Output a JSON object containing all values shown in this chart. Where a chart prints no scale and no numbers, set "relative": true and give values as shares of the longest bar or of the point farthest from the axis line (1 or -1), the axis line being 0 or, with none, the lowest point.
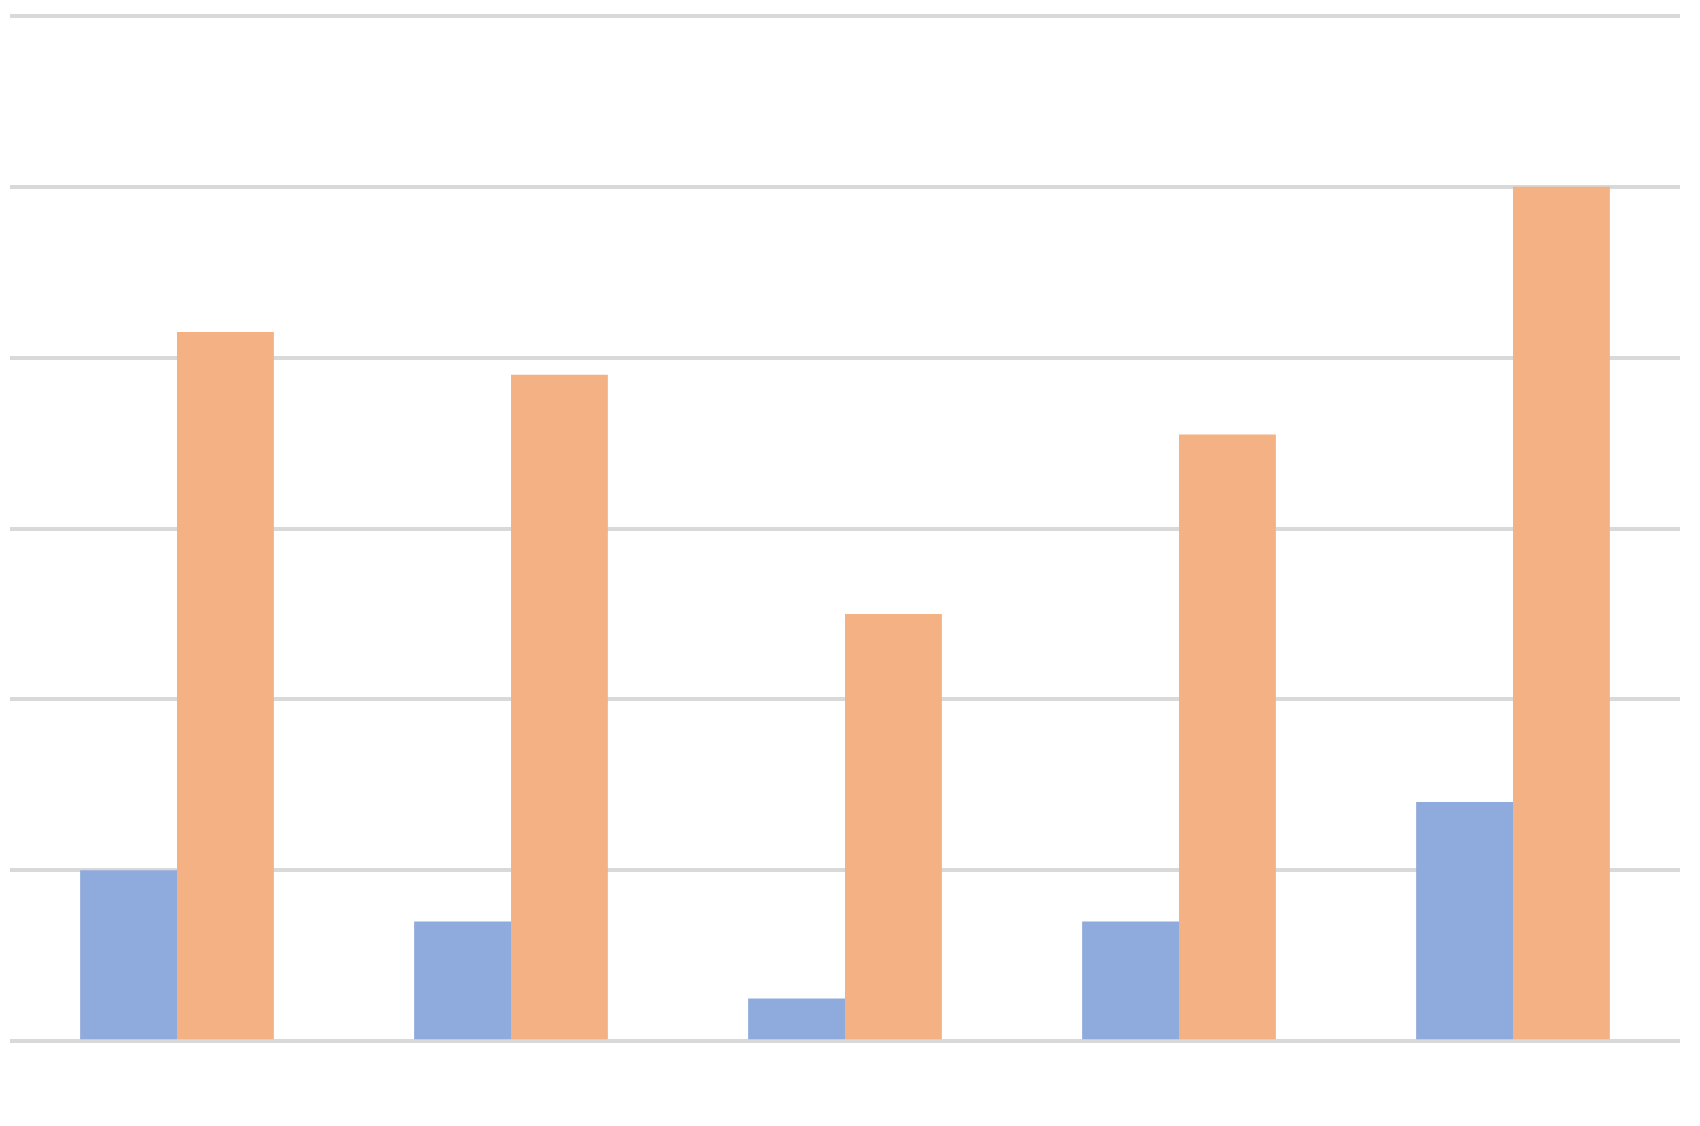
{
  "chart_data": {
    "type": "bar",
    "relative": true,
    "grid": "y",
    "categories": [
      null,
      null,
      null,
      null,
      null
    ],
    "series": [
      {
        "color": "#8faadc",
        "values": [
          0.2,
          0.14,
          0.05,
          0.14,
          0.28
        ]
      },
      {
        "color": "#f4b183",
        "values": [
          0.83,
          0.78,
          0.5,
          0.71,
          1
        ]
      }
    ]
  }
}
